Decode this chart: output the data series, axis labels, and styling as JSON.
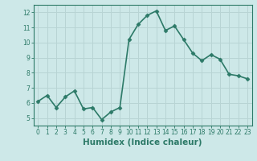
{
  "x": [
    0,
    1,
    2,
    3,
    4,
    5,
    6,
    7,
    8,
    9,
    10,
    11,
    12,
    13,
    14,
    15,
    16,
    17,
    18,
    19,
    20,
    21,
    22,
    23
  ],
  "y": [
    6.1,
    6.5,
    5.7,
    6.4,
    6.8,
    5.6,
    5.7,
    4.9,
    5.4,
    5.7,
    10.2,
    11.2,
    11.8,
    12.1,
    10.8,
    11.1,
    10.2,
    9.3,
    8.8,
    9.2,
    8.9,
    7.9,
    7.8,
    7.6
  ],
  "line_color": "#2d7a68",
  "marker": "D",
  "marker_size": 2.5,
  "bg_color": "#cde8e8",
  "grid_color": "#b8d4d4",
  "xlabel": "Humidex (Indice chaleur)",
  "xlim": [
    -0.5,
    23.5
  ],
  "ylim": [
    4.5,
    12.5
  ],
  "yticks": [
    5,
    6,
    7,
    8,
    9,
    10,
    11,
    12
  ],
  "xticks": [
    0,
    1,
    2,
    3,
    4,
    5,
    6,
    7,
    8,
    9,
    10,
    11,
    12,
    13,
    14,
    15,
    16,
    17,
    18,
    19,
    20,
    21,
    22,
    23
  ],
  "xtick_labels": [
    "0",
    "1",
    "2",
    "3",
    "4",
    "5",
    "6",
    "7",
    "8",
    "9",
    "10",
    "11",
    "12",
    "13",
    "14",
    "15",
    "16",
    "17",
    "18",
    "19",
    "20",
    "21",
    "22",
    "23"
  ],
  "tick_fontsize": 5.5,
  "label_fontsize": 7.5,
  "axis_color": "#2d7a68",
  "linewidth": 1.2
}
